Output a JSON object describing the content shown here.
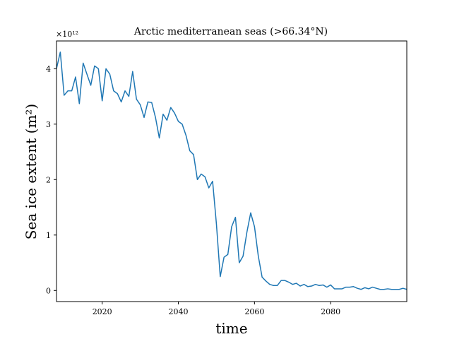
{
  "chart_data": {
    "type": "line",
    "title": "Arctic mediterranean seas (>66.34°N)",
    "xlabel": "time",
    "ylabel": "Sea ice extent (m²)",
    "y_multiplier": "×10¹²",
    "xlim": [
      2008,
      2100
    ],
    "ylim": [
      -0.2,
      4.5
    ],
    "x_ticks": [
      2020,
      2040,
      2060,
      2080
    ],
    "y_ticks": [
      0,
      1,
      2,
      3,
      4
    ],
    "grid": false,
    "legend": "none",
    "colors": {
      "line": "#1f77b4"
    },
    "series": [
      {
        "x": [
          2008,
          2009,
          2010,
          2011,
          2012,
          2013,
          2014,
          2015,
          2016,
          2017,
          2018,
          2019,
          2020,
          2021,
          2022,
          2023,
          2024,
          2025,
          2026,
          2027,
          2028,
          2029,
          2030,
          2031,
          2032,
          2033,
          2034,
          2035,
          2036,
          2037,
          2038,
          2039,
          2040,
          2041,
          2042,
          2043,
          2044,
          2045,
          2046,
          2047,
          2048,
          2049,
          2050,
          2051,
          2052,
          2053,
          2054,
          2055,
          2056,
          2057,
          2058,
          2059,
          2060,
          2061,
          2062,
          2063,
          2064,
          2065,
          2066,
          2067,
          2068,
          2069,
          2070,
          2071,
          2072,
          2073,
          2074,
          2075,
          2076,
          2077,
          2078,
          2079,
          2080,
          2081,
          2082,
          2083,
          2084,
          2085,
          2086,
          2087,
          2088,
          2089,
          2090,
          2091,
          2092,
          2093,
          2094,
          2095,
          2096,
          2097,
          2098,
          2099,
          2100
        ],
        "values": [
          4.0,
          4.3,
          3.52,
          3.6,
          3.6,
          3.85,
          3.37,
          4.1,
          3.9,
          3.7,
          4.05,
          4.0,
          3.42,
          4.0,
          3.9,
          3.6,
          3.55,
          3.4,
          3.6,
          3.5,
          3.95,
          3.45,
          3.35,
          3.12,
          3.4,
          3.39,
          3.12,
          2.75,
          3.18,
          3.07,
          3.3,
          3.2,
          3.05,
          3.0,
          2.8,
          2.52,
          2.45,
          2.0,
          2.1,
          2.05,
          1.85,
          1.97,
          1.2,
          0.25,
          0.6,
          0.65,
          1.15,
          1.32,
          0.5,
          0.62,
          1.05,
          1.4,
          1.15,
          0.62,
          0.24,
          0.17,
          0.11,
          0.09,
          0.09,
          0.18,
          0.18,
          0.15,
          0.11,
          0.13,
          0.08,
          0.11,
          0.07,
          0.08,
          0.11,
          0.09,
          0.1,
          0.06,
          0.1,
          0.03,
          0.03,
          0.03,
          0.06,
          0.06,
          0.07,
          0.04,
          0.02,
          0.05,
          0.03,
          0.06,
          0.04,
          0.02,
          0.02,
          0.03,
          0.02,
          0.02,
          0.02,
          0.04,
          0.02
        ]
      }
    ]
  }
}
